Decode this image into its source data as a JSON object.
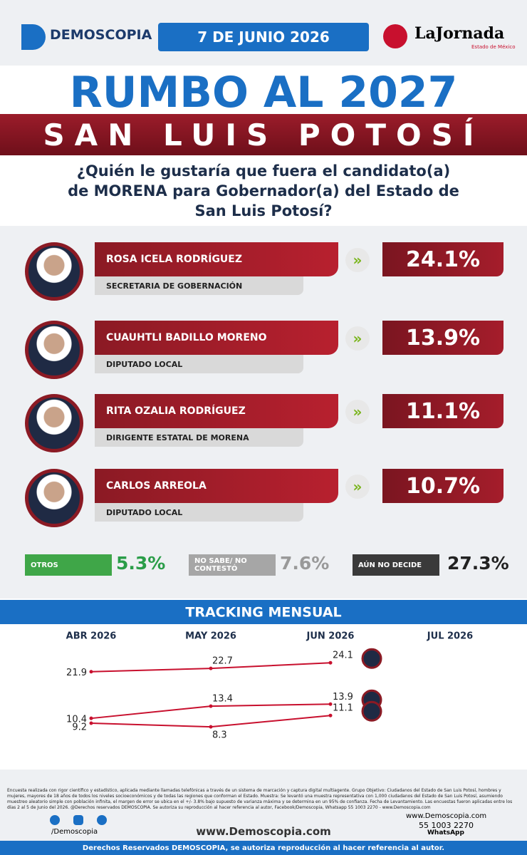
{
  "header": {
    "brand": "DEMOSCOPIA",
    "date": "7 DE JUNIO 2026",
    "newspaper": "LaJornada",
    "newspaper_edition": "Estado de México"
  },
  "title": "RUMBO AL 2027",
  "state": "SAN LUIS POTOSÍ",
  "question": "¿Quién le gustaría que fuera el candidato(a) de MORENA para Gobernador(a) del Estado de San Luis Potosí?",
  "candidates": [
    {
      "name": "ROSA ICELA RODRÍGUEZ",
      "role": "SECRETARIA DE GOBERNACIÓN",
      "percent": "24.1%"
    },
    {
      "name": "CUAUHTLI BADILLO MORENO",
      "role": "DIPUTADO LOCAL",
      "percent": "13.9%"
    },
    {
      "name": "RITA OZALIA RODRÍGUEZ",
      "role": "DIRIGENTE ESTATAL DE MORENA",
      "percent": "11.1%"
    },
    {
      "name": "CARLOS ARREOLA",
      "role": "DIPUTADO LOCAL",
      "percent": "10.7%"
    }
  ],
  "others": [
    {
      "label": "OTROS",
      "percent": "5.3%"
    },
    {
      "label": "NO SABE/ NO CONTESTÓ",
      "percent": "7.6%"
    },
    {
      "label": "AÚN NO DECIDE",
      "percent": "27.3%"
    }
  ],
  "chart_data": {
    "type": "line",
    "title": "TRACKING MENSUAL",
    "categories": [
      "ABR 2026",
      "MAY 2026",
      "JUN 2026",
      "JUL 2026"
    ],
    "ylim": [
      2,
      28
    ],
    "series": [
      {
        "color": "#c8102e",
        "values": [
          21.9,
          22.7,
          24.1,
          null
        ]
      },
      {
        "color": "#c8102e",
        "values": [
          10.4,
          13.4,
          13.9,
          null
        ]
      },
      {
        "color": "#c8102e",
        "values": [
          9.2,
          8.3,
          11.1,
          null
        ]
      }
    ]
  },
  "footer": {
    "disclaimer": "Encuesta realizada con rigor científico y estadístico, aplicada mediante llamadas telefónicas a través de un sistema de marcación y captura digital multiagente. Grupo Objetivo: Ciudadanos del Estado de San Luis Potosí, hombres y mujeres, mayores de 18 años de todos los niveles socioeconómicos y de todas las regiones que conforman el Estado. Muestra: Se levantó una muestra representativa con 1,000 ciudadanos del Estado de San Luis Potosí, asumiendo muestreo aleatorio simple con población infinita, el margen de error se ubica en el +/- 3.8% bajo supuesto de varianza máxima y se determina en un 95% de confianza. Fecha de Levantamiento. Las encuestas fueron aplicadas entre los días 2 al 5 de Junio del 2026. @Derechos reservados DEMOSCOPIA. Se autoriza su reproducción al hacer referencia al autor, Facebook/Demoscopia, Whatsapp 55 1003 2270 - www.Demoscopia.com",
    "social": "/Demoscopia",
    "website": "www.Demoscopia.com",
    "website_small": "www.Demoscopia.com",
    "phone": "55 1003 2270",
    "whatsapp": "WhatsApp",
    "rights": "Derechos Reservados DEMOSCOPIA, se autoriza reproducción al hacer referencia al autor."
  }
}
